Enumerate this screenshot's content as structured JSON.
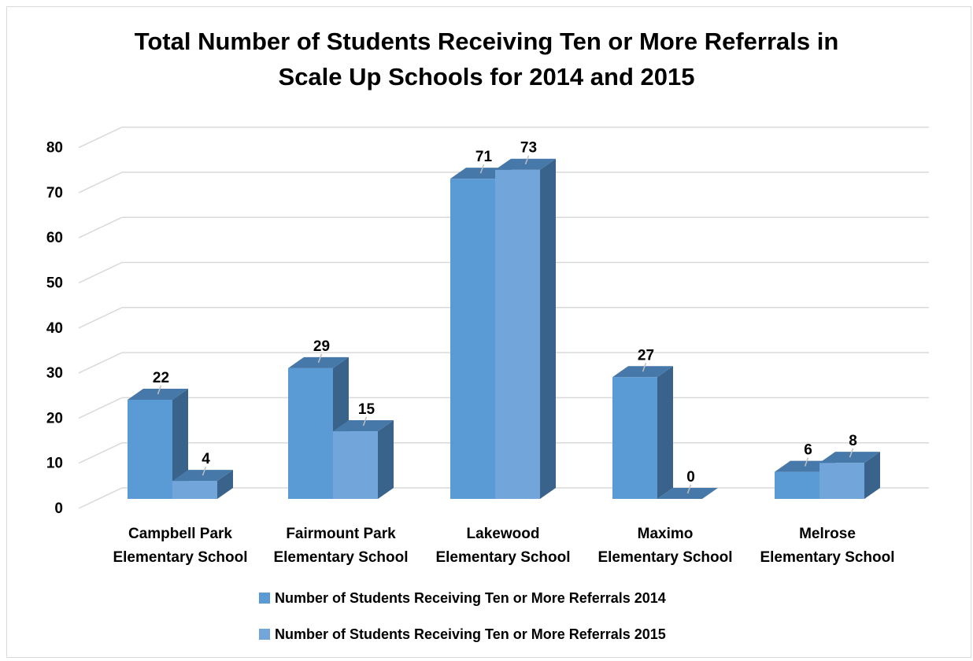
{
  "chart_data": {
    "type": "bar",
    "title_lines": [
      "Total Number of Students Receiving Ten or More Referrals in",
      "Scale Up Schools for 2014 and 2015"
    ],
    "categories": [
      [
        "Campbell Park",
        "Elementary School"
      ],
      [
        "Fairmount Park",
        "Elementary School"
      ],
      [
        "Lakewood",
        "Elementary School"
      ],
      [
        "Maximo",
        "Elementary School"
      ],
      [
        "Melrose",
        "Elementary School"
      ]
    ],
    "series": [
      {
        "name": "Number of Students Receiving Ten or More Referrals  2014",
        "values": [
          22,
          29,
          71,
          27,
          6
        ],
        "color": "#5b9bd5"
      },
      {
        "name": "Number of Students Receiving Ten or More Referrals  2015",
        "values": [
          4,
          15,
          73,
          0,
          8
        ],
        "color": "#72a5da"
      }
    ],
    "y_ticks": [
      "0",
      "10",
      "20",
      "30",
      "40",
      "50",
      "60",
      "70",
      "80"
    ],
    "ylim": [
      0,
      80
    ],
    "grid": true,
    "legend_position": "bottom",
    "style_3d": true
  }
}
